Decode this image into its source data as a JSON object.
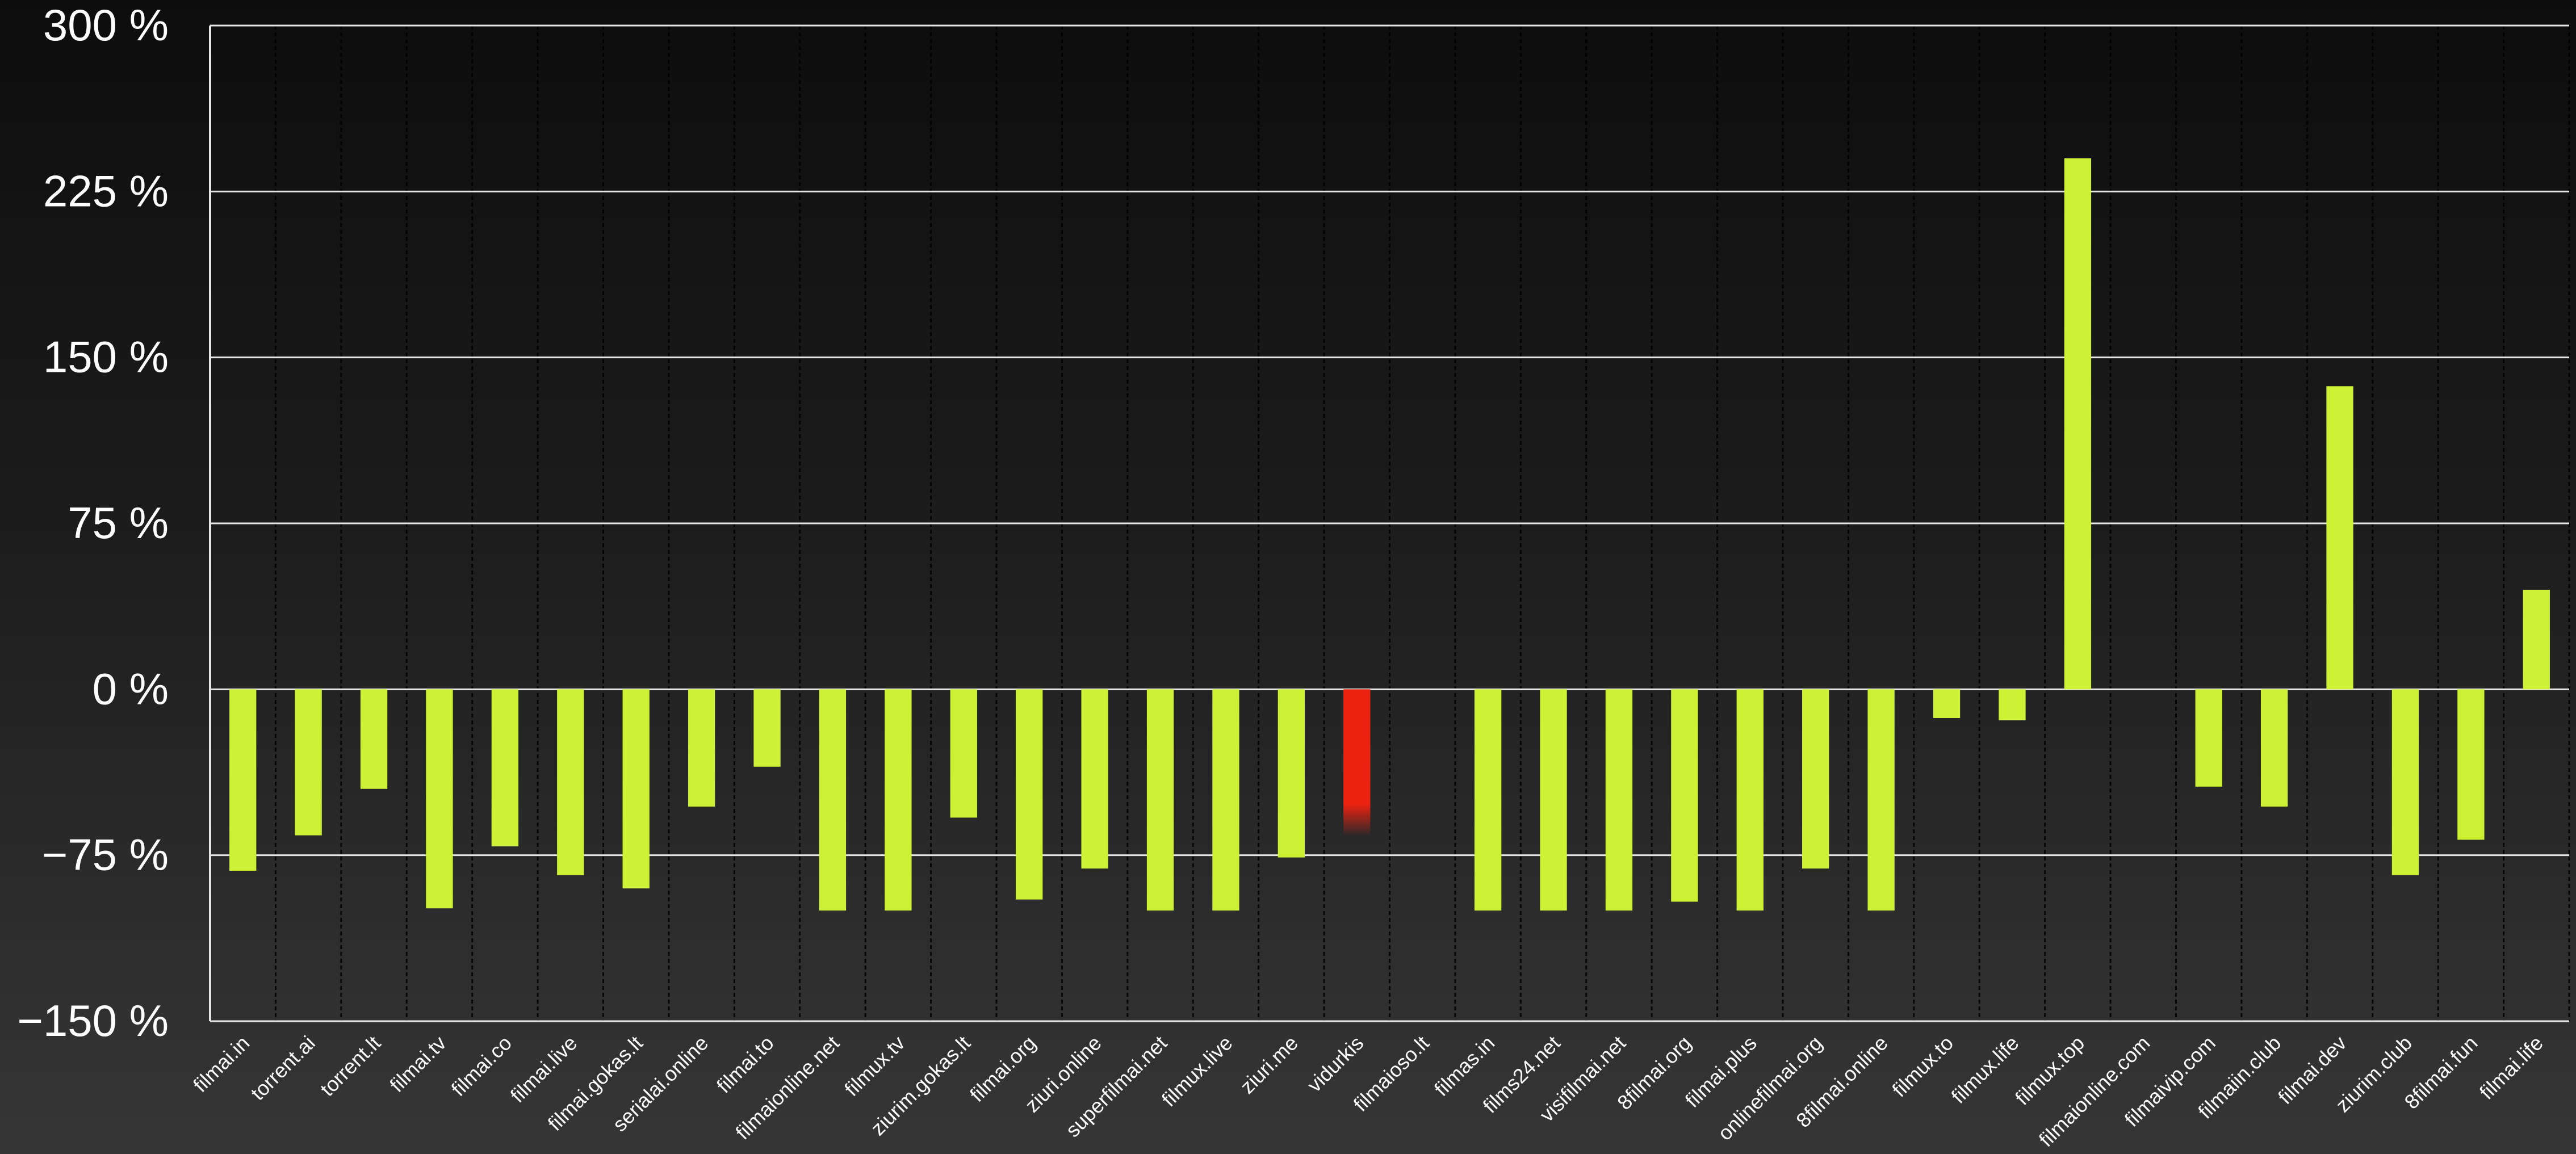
{
  "chart_data": {
    "type": "bar",
    "title": "",
    "xlabel": "",
    "ylabel": "",
    "ylim": [
      -150,
      300
    ],
    "yticks": [
      300,
      225,
      150,
      75,
      0,
      -75,
      -150
    ],
    "ytick_labels": [
      "300 %",
      "225 %",
      "150 %",
      "75 %",
      "0 %",
      "−75 %",
      "−150 %"
    ],
    "grid": "horizontal",
    "categories": [
      "filmai.in",
      "torrent.ai",
      "torrent.lt",
      "filmai.tv",
      "filmai.co",
      "filmai.live",
      "filmai.gokas.lt",
      "serialai.online",
      "filmai.to",
      "filmaionline.net",
      "filmux.tv",
      "ziurim.gokas.lt",
      "filmai.org",
      "ziuri.online",
      "superfilmai.net",
      "filmux.live",
      "ziuri.me",
      "vidurkis",
      "filmaioso.lt",
      "filmas.in",
      "films24.net",
      "visifilmai.net",
      "8filmai.org",
      "filmai.plus",
      "onlinefilmai.org",
      "8filmai.online",
      "filmux.to",
      "filmux.life",
      "filmux.top",
      "filmaionline.com",
      "filmaivip.com",
      "filmaiin.club",
      "filmai.dev",
      "ziurim.club",
      "8filmai.fun",
      "filmai.life"
    ],
    "values": [
      -82,
      -66,
      -45,
      -99,
      -71,
      -84,
      -90,
      -53,
      -35,
      -100,
      -100,
      -58,
      -95,
      -81,
      -100,
      -100,
      -76,
      -51,
      0,
      -100,
      -100,
      -100,
      -96,
      -100,
      -81,
      -100,
      -13,
      -14,
      240,
      0,
      -44,
      -53,
      137,
      -84,
      -68,
      45
    ],
    "highlight_category": "vidurkis",
    "colors": {
      "bar": "#cdf235",
      "highlight": "#ee2211",
      "grid": "#e6e6e6",
      "text": "#ffffff"
    }
  }
}
